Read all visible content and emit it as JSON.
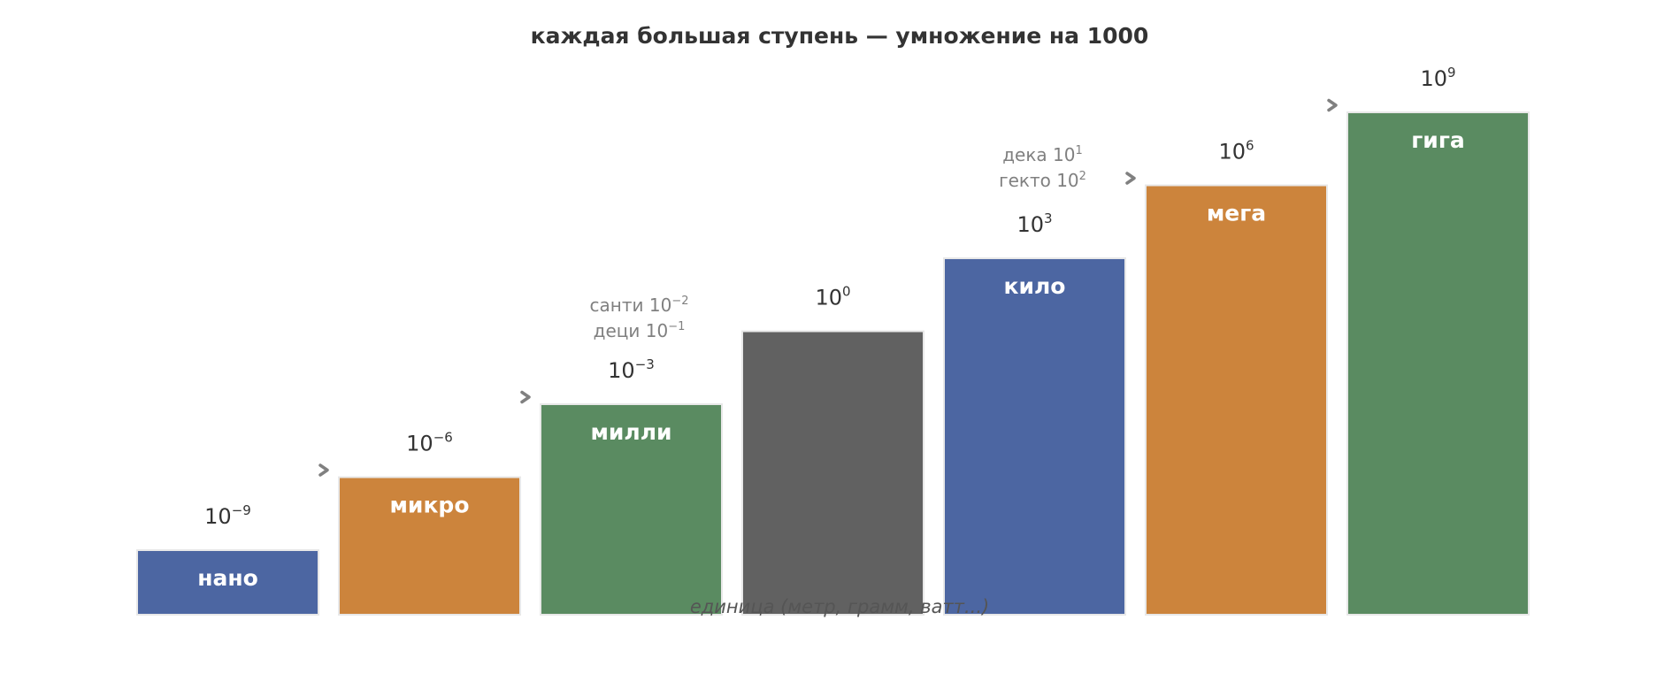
{
  "chart_data": {
    "type": "bar",
    "title": "каждая большая ступень — умножение на 1000",
    "xlabel": "единица (метр, грамм, ватт...)",
    "ylabel": "",
    "categories": [
      "нано",
      "микро",
      "милли",
      "",
      "кило",
      "мега",
      "гига"
    ],
    "exponents": [
      -9,
      -6,
      -3,
      0,
      3,
      6,
      9
    ],
    "exponent_labels": [
      {
        "base": "10",
        "exp": "−9"
      },
      {
        "base": "10",
        "exp": "−6"
      },
      {
        "base": "10",
        "exp": "−3"
      },
      {
        "base": "10",
        "exp": "0"
      },
      {
        "base": "10",
        "exp": "3"
      },
      {
        "base": "10",
        "exp": "6"
      },
      {
        "base": "10",
        "exp": "9"
      }
    ],
    "colors": [
      "#4c66a2",
      "#cc843c",
      "#5a8b61",
      "#616161",
      "#4c66a2",
      "#cc843c",
      "#5a8b61"
    ],
    "arrow_color": "#808080",
    "arrows_before": [
      1,
      2,
      5,
      6
    ],
    "annotations": [
      {
        "near": 2,
        "lines": [
          {
            "text": "санти 10",
            "exp": "−2"
          },
          {
            "text": "деци 10",
            "exp": "−1"
          }
        ]
      },
      {
        "near": 4,
        "lines": [
          {
            "text": "дека 10",
            "exp": "1"
          },
          {
            "text": "гекто 10",
            "exp": "2"
          }
        ]
      }
    ],
    "grid": false,
    "legend": "none"
  }
}
